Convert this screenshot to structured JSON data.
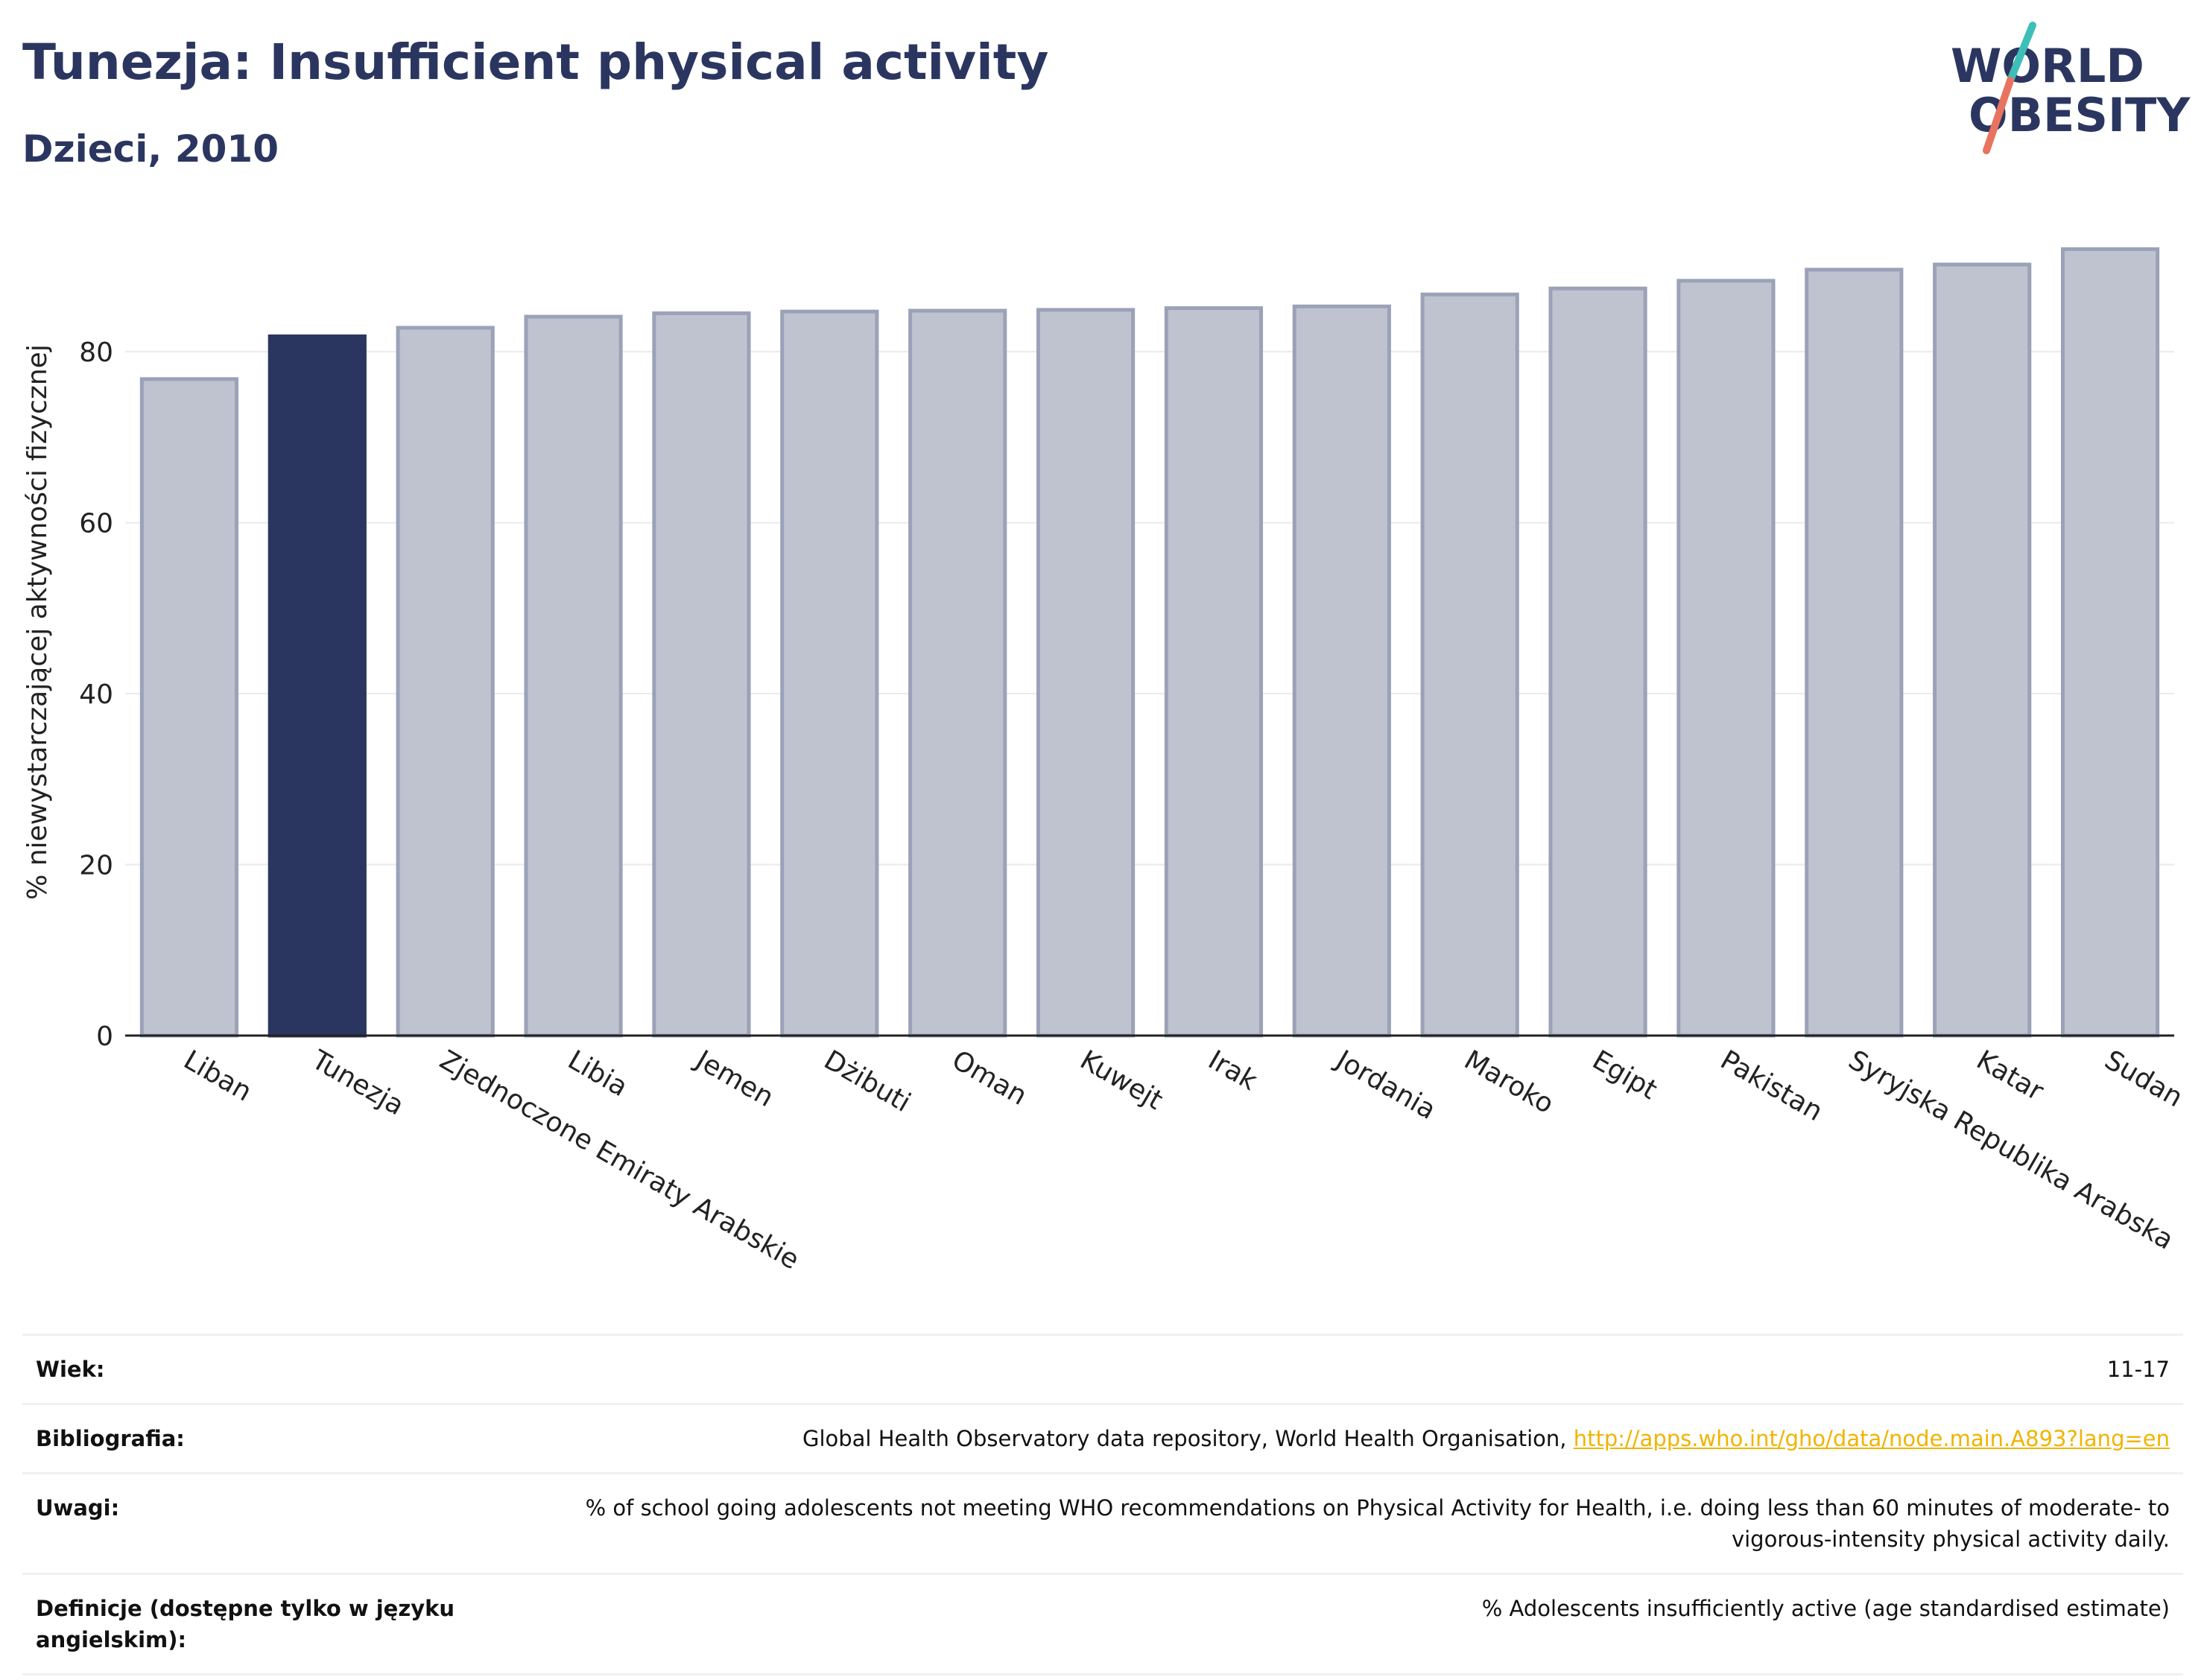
{
  "header": {
    "title": "Tunezja: Insufficient physical activity",
    "subtitle": "Dzieci, 2010"
  },
  "logo": {
    "line1": "WORLD",
    "line2": "OBESITY",
    "colors": {
      "text": "#2b3660",
      "teal": "#3dbfb8",
      "coral": "#e8735f"
    }
  },
  "chart_data": {
    "type": "bar",
    "title": "Tunezja: Insufficient physical activity",
    "subtitle": "Dzieci, 2010",
    "xlabel": "",
    "ylabel": "% niewystarczającej aktywności fizycznej",
    "ylim": [
      0,
      95
    ],
    "yticks": [
      0,
      20,
      40,
      60,
      80
    ],
    "grid": true,
    "highlight": "Tunezja",
    "colors": {
      "bar": "#bfc3d0",
      "bar_edge": "#9ba2b8",
      "highlight": "#2b3660"
    },
    "categories": [
      "Liban",
      "Tunezja",
      "Zjednoczone Emiraty Arabskie",
      "Libia",
      "Jemen",
      "Dżibuti",
      "Oman",
      "Kuwejt",
      "Irak",
      "Jordania",
      "Maroko",
      "Egipt",
      "Pakistan",
      "Syryjska Republika Arabska",
      "Katar",
      "Sudan"
    ],
    "values": [
      76.8,
      81.8,
      82.8,
      84.1,
      84.5,
      84.7,
      84.8,
      84.9,
      85.1,
      85.3,
      86.7,
      87.4,
      88.3,
      89.6,
      90.2,
      92.0
    ]
  },
  "info": {
    "rows": [
      {
        "label": "Wiek:",
        "value": "11-17"
      },
      {
        "label": "Bibliografia:",
        "value": "Global Health Observatory data repository, World Health Organisation, ",
        "link": "http://apps.who.int/gho/data/node.main.A893?lang=en"
      },
      {
        "label": "Uwagi:",
        "value": "% of school going adolescents not meeting WHO recommendations on Physical Activity for Health, i.e. doing less than 60 minutes of moderate- to vigorous-intensity physical activity daily."
      },
      {
        "label": "Definicje (dostępne tylko w języku angielskim):",
        "value": "% Adolescents insufficiently active (age standardised estimate)"
      }
    ]
  }
}
